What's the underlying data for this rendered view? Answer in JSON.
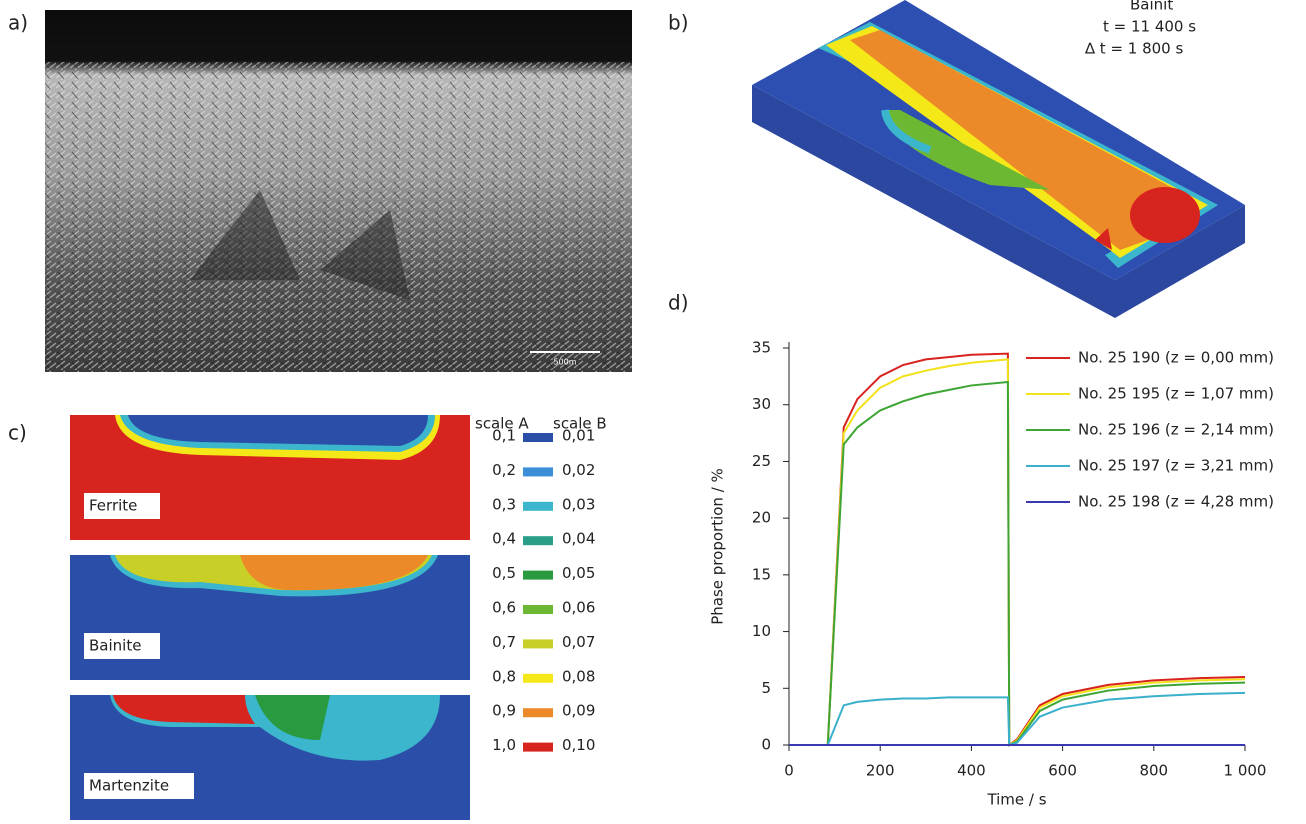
{
  "panel_labels": [
    "a)",
    "b)",
    "c)",
    "d)"
  ],
  "panel_a": {
    "scale_bar": "500m"
  },
  "panel_b": {
    "lines": [
      "Bainit",
      "t = 11 400 s",
      "∆ t = 1 800 s"
    ]
  },
  "panel_c": {
    "maps": [
      "Ferrite",
      "Bainite",
      "Martenzite"
    ],
    "headers": [
      "scale A",
      "scale B"
    ],
    "scale": [
      {
        "a": "0,1",
        "b": "0,01",
        "color": "#2b4fa8"
      },
      {
        "a": "0,2",
        "b": "0,02",
        "color": "#3a8fd8"
      },
      {
        "a": "0,3",
        "b": "0,03",
        "color": "#3bb6cc"
      },
      {
        "a": "0,4",
        "b": "0,04",
        "color": "#2a9e88"
      },
      {
        "a": "0,5",
        "b": "0,05",
        "color": "#2a9a40"
      },
      {
        "a": "0,6",
        "b": "0,06",
        "color": "#6db832"
      },
      {
        "a": "0,7",
        "b": "0,07",
        "color": "#c8d028"
      },
      {
        "a": "0,8",
        "b": "0,08",
        "color": "#f5e818"
      },
      {
        "a": "0,9",
        "b": "0,09",
        "color": "#ec8a2a"
      },
      {
        "a": "1,0",
        "b": "0,10",
        "color": "#d8241e"
      }
    ]
  },
  "chart_data": {
    "type": "line",
    "x_label": "Time / s",
    "y_label": "Phase proportion / %",
    "x": [
      0,
      85,
      120,
      150,
      200,
      250,
      300,
      350,
      400,
      480,
      483,
      500,
      550,
      600,
      700,
      800,
      900,
      1000
    ],
    "xlim": [
      0,
      1000
    ],
    "ylim": [
      0,
      35
    ],
    "xticks": [
      0,
      200,
      400,
      600,
      800,
      {
        "value": 1000,
        "label": "1 000"
      }
    ],
    "yticks": [
      0,
      5,
      10,
      15,
      20,
      25,
      30,
      35
    ],
    "series": [
      {
        "name": "No. 25 190 (z = 0,00 mm)",
        "color": "#d8231f",
        "values": [
          0,
          0,
          28,
          30.5,
          32.5,
          33.5,
          34,
          34.2,
          34.4,
          34.5,
          0,
          0.5,
          3.5,
          4.5,
          5.3,
          5.7,
          5.9,
          6
        ]
      },
      {
        "name": "No. 25 195 (z = 1,07 mm)",
        "color": "#f2e21a",
        "values": [
          0,
          0,
          27.5,
          29.5,
          31.5,
          32.5,
          33,
          33.4,
          33.7,
          34,
          0,
          0.4,
          3.3,
          4.3,
          5.1,
          5.5,
          5.7,
          5.8
        ]
      },
      {
        "name": "No. 25 196 (z = 2,14 mm)",
        "color": "#3ea534",
        "values": [
          0,
          0,
          26.5,
          28,
          29.5,
          30.3,
          30.9,
          31.3,
          31.7,
          32,
          0,
          0.3,
          3,
          4,
          4.8,
          5.2,
          5.4,
          5.5
        ]
      },
      {
        "name": "No. 25 197 (z = 3,21 mm)",
        "color": "#3ab0cc",
        "values": [
          0,
          0,
          3.5,
          3.8,
          4,
          4.1,
          4.1,
          4.2,
          4.2,
          4.2,
          0,
          0.2,
          2.5,
          3.3,
          4,
          4.3,
          4.5,
          4.6
        ]
      },
      {
        "name": "No. 25 198 (z = 4,28 mm)",
        "color": "#3a3ab0",
        "values": [
          0,
          0,
          0,
          0,
          0,
          0,
          0,
          0,
          0,
          0,
          0,
          0,
          0,
          0,
          0,
          0,
          0,
          0
        ]
      }
    ]
  }
}
